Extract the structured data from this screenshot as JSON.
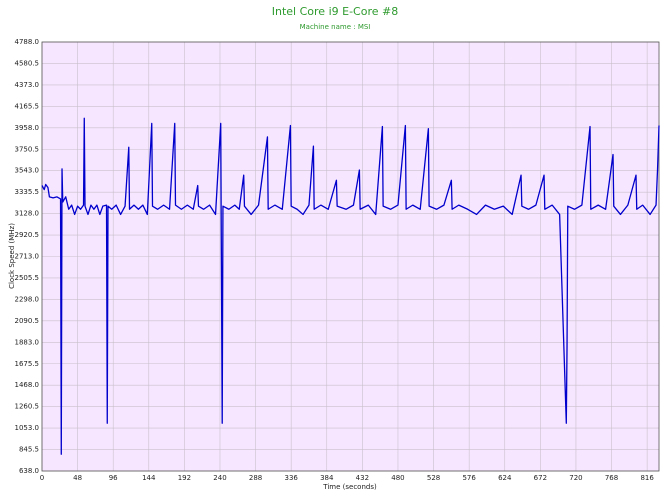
{
  "chart_data": {
    "type": "line",
    "title": "Intel Core i9 E-Core #8",
    "subtitle": "Machine name : MSI",
    "x_label": "Time (seconds)",
    "y_label": "Clock Speed (MHz)",
    "xlim": [
      0,
      832
    ],
    "ylim": [
      638,
      4788
    ],
    "xticks": [
      0,
      48,
      96,
      144,
      192,
      240,
      288,
      336,
      384,
      432,
      480,
      528,
      576,
      624,
      672,
      720,
      768,
      816
    ],
    "yticks": [
      {
        "value": 638,
        "label": "638.0"
      },
      845.5,
      {
        "value": 1053,
        "label": "1053.0"
      },
      1260.5,
      {
        "value": 1468,
        "label": "1468.0"
      },
      1675.5,
      {
        "value": 1883,
        "label": "1883.0"
      },
      2090.5,
      {
        "value": 2298,
        "label": "2298.0"
      },
      2505.5,
      {
        "value": 2713,
        "label": "2713.0"
      },
      2920.5,
      {
        "value": 3128,
        "label": "3128.0"
      },
      3335.5,
      {
        "value": 3543,
        "label": "3543.0"
      },
      3750.5,
      {
        "value": 3958,
        "label": "3958.0"
      },
      4165.5,
      {
        "value": 4373,
        "label": "4373.0"
      },
      4580.5,
      {
        "value": 4788,
        "label": "4788.0"
      }
    ],
    "grid": true,
    "background": "#f7e6ff",
    "title_color": "#2e9a2e",
    "x": [
      0,
      3,
      5,
      8,
      10,
      15,
      20,
      25,
      26,
      27,
      28,
      32,
      36,
      40,
      44,
      48,
      52,
      56,
      57,
      58,
      62,
      66,
      70,
      74,
      78,
      82,
      87,
      88,
      89,
      94,
      100,
      106,
      112,
      117,
      118,
      124,
      130,
      136,
      142,
      148,
      149,
      156,
      164,
      172,
      179,
      180,
      188,
      196,
      204,
      210,
      211,
      218,
      226,
      234,
      241,
      243,
      244,
      252,
      260,
      266,
      272,
      273,
      282,
      292,
      304,
      305,
      314,
      324,
      335,
      336,
      344,
      352,
      360,
      366,
      367,
      376,
      386,
      397,
      398,
      410,
      420,
      428,
      429,
      440,
      450,
      459,
      460,
      470,
      480,
      490,
      491,
      500,
      510,
      521,
      522,
      532,
      542,
      552,
      553,
      562,
      574,
      586,
      598,
      610,
      622,
      634,
      646,
      647,
      656,
      666,
      677,
      678,
      688,
      698,
      707,
      708,
      709,
      718,
      728,
      739,
      740,
      750,
      760,
      770,
      771,
      780,
      790,
      801,
      802,
      810,
      820,
      828,
      830,
      832
    ],
    "series": [
      {
        "color": "#0000cc",
        "values": [
          3400,
          3360,
          3410,
          3380,
          3290,
          3280,
          3290,
          3270,
          800,
          3560,
          3240,
          3290,
          3170,
          3210,
          3120,
          3200,
          3170,
          3210,
          4050,
          3200,
          3120,
          3210,
          3170,
          3210,
          3120,
          3200,
          3210,
          1100,
          3200,
          3170,
          3210,
          3120,
          3200,
          3770,
          3170,
          3210,
          3170,
          3210,
          3120,
          4000,
          3200,
          3170,
          3210,
          3170,
          4000,
          3210,
          3170,
          3210,
          3170,
          3400,
          3200,
          3170,
          3210,
          3120,
          4000,
          1100,
          3200,
          3170,
          3210,
          3170,
          3500,
          3200,
          3120,
          3210,
          3870,
          3170,
          3210,
          3170,
          3980,
          3200,
          3170,
          3120,
          3210,
          3780,
          3170,
          3210,
          3170,
          3450,
          3200,
          3170,
          3210,
          3550,
          3170,
          3210,
          3120,
          3970,
          3200,
          3170,
          3210,
          3980,
          3170,
          3210,
          3170,
          3950,
          3200,
          3170,
          3210,
          3450,
          3170,
          3210,
          3170,
          3120,
          3210,
          3170,
          3200,
          3120,
          3500,
          3200,
          3170,
          3210,
          3500,
          3170,
          3210,
          3120,
          1100,
          1850,
          3200,
          3170,
          3210,
          3970,
          3170,
          3210,
          3170,
          3700,
          3200,
          3120,
          3210,
          3500,
          3170,
          3210,
          3120,
          3210,
          3550,
          3980
        ]
      }
    ]
  }
}
